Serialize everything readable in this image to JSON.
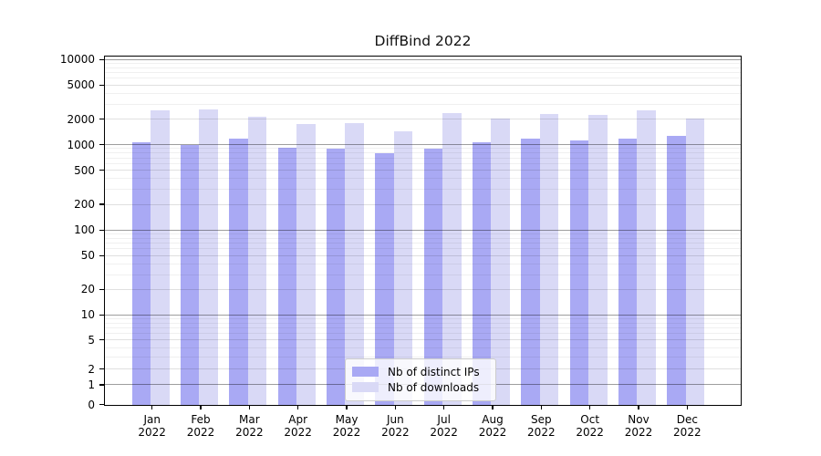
{
  "title": "DiffBind 2022",
  "chart_data": {
    "type": "bar",
    "title": "DiffBind 2022",
    "categories": [
      "Jan",
      "Feb",
      "Mar",
      "Apr",
      "May",
      "Jun",
      "Jul",
      "Aug",
      "Sep",
      "Oct",
      "Nov",
      "Dec"
    ],
    "x_year_label": "2022",
    "series": [
      {
        "name": "Nb of distinct IPs",
        "color": "#a9a9f4",
        "values": [
          1060,
          990,
          1180,
          930,
          910,
          790,
          910,
          1060,
          1180,
          1130,
          1190,
          1270
        ]
      },
      {
        "name": "Nb of downloads",
        "color": "#d9d9f6",
        "values": [
          2540,
          2600,
          2130,
          1730,
          1800,
          1440,
          2380,
          2030,
          2300,
          2240,
          2540,
          2010
        ]
      }
    ],
    "yaxis": {
      "ticks": [
        0,
        1,
        2,
        5,
        10,
        20,
        50,
        100,
        200,
        500,
        1000,
        2000,
        5000,
        10000
      ],
      "scale": "pseudo-log",
      "range": [
        0,
        10000
      ]
    },
    "grid": "both",
    "legend": {
      "position": "bottom-center"
    }
  },
  "colors": {
    "grid_power10": "rgba(0,0,0,0.38)",
    "grid_labeled": "rgba(0,0,0,0.12)",
    "grid_minor": "rgba(0,0,0,0.06)",
    "spine": "#000000",
    "background": "#ffffff"
  }
}
